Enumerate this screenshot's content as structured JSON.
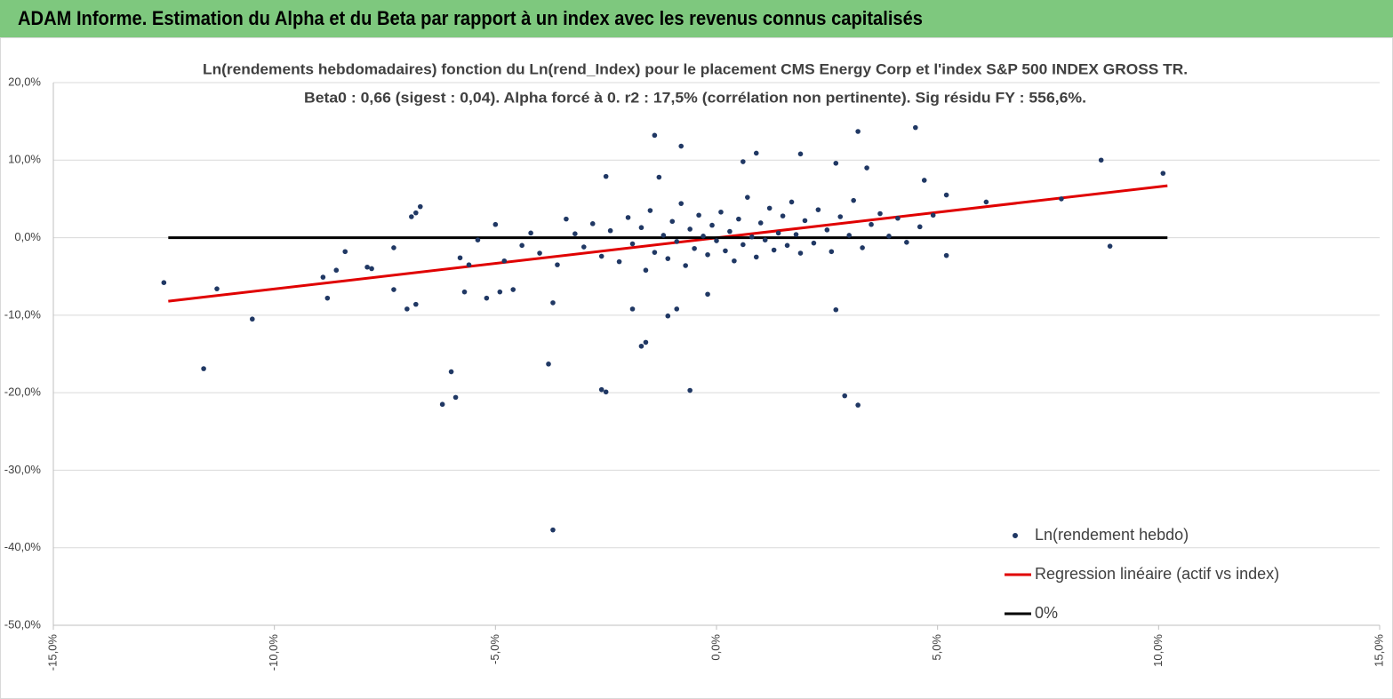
{
  "header": {
    "title": "ADAM Informe. Estimation du Alpha et du Beta par rapport à un index avec les revenus connus capitalisés"
  },
  "chart_data": {
    "type": "scatter",
    "title": "Ln(rendements hebdomadaires) fonction du Ln(rend_Index) pour le placement CMS Energy Corp et l'index S&P 500 INDEX GROSS TR.",
    "subtitle": "Beta0 : 0,66 (sigest : 0,04). Alpha forcé à 0. r2 : 17,5% (corrélation non pertinente). Sig résidu FY : 556,6%.",
    "xlim": [
      -15,
      15
    ],
    "xticks": [
      {
        "value": -15,
        "label": "-15,0%"
      },
      {
        "value": -10,
        "label": "-10,0%"
      },
      {
        "value": -5,
        "label": "-5,0%"
      },
      {
        "value": 0,
        "label": "0,0%"
      },
      {
        "value": 5,
        "label": "5,0%"
      },
      {
        "value": 10,
        "label": "10,0%"
      },
      {
        "value": 15,
        "label": "15,0%"
      }
    ],
    "ylim": [
      -50,
      20
    ],
    "yticks": [
      {
        "value": -50,
        "label": "-50,0%"
      },
      {
        "value": -40,
        "label": "-40,0%"
      },
      {
        "value": -30,
        "label": "-30,0%"
      },
      {
        "value": -20,
        "label": "-20,0%"
      },
      {
        "value": -10,
        "label": "-10,0%"
      },
      {
        "value": 0,
        "label": "0,0%"
      },
      {
        "value": 10,
        "label": "10,0%"
      },
      {
        "value": 20,
        "label": "20,0%"
      }
    ],
    "grid": true,
    "legend": "lower right",
    "series": [
      {
        "name": "Ln(rendement hebdo)",
        "type": "scatter",
        "color": "#203864",
        "x": [
          -12.5,
          -11.6,
          -11.3,
          -10.5,
          -8.9,
          -8.8,
          -8.6,
          -8.4,
          -7.9,
          -7.8,
          -7.3,
          -7.3,
          -7.0,
          -6.9,
          -6.8,
          -6.8,
          -6.7,
          -6.2,
          -6.0,
          -5.9,
          -5.8,
          -5.7,
          -5.6,
          -5.4,
          -5.2,
          -5.0,
          -4.9,
          -4.6,
          -3.8,
          -3.7,
          -3.7,
          -2.5,
          -2.6,
          -2.5,
          -1.9,
          -1.7,
          -1.6,
          -1.4,
          -1.3,
          -1.1,
          -0.9,
          -0.8,
          -0.6,
          -0.2,
          0.6,
          0.9,
          1.9,
          2.7,
          2.7,
          2.9,
          3.2,
          3.2,
          3.4,
          4.5,
          4.7,
          4.9,
          5.2,
          5.2,
          6.1,
          7.8,
          8.7,
          8.9,
          10.1,
          -3.2,
          -3.0,
          -2.8,
          -2.6,
          -2.4,
          -2.2,
          -2.0,
          -1.9,
          -1.7,
          -1.6,
          -1.5,
          -1.4,
          -1.2,
          -1.1,
          -1.0,
          -0.9,
          -0.8,
          -0.7,
          -0.6,
          -0.5,
          -0.4,
          -0.3,
          -0.2,
          -0.1,
          0.0,
          0.1,
          0.2,
          0.3,
          0.4,
          0.5,
          0.6,
          0.7,
          0.8,
          0.9,
          1.0,
          1.1,
          1.2,
          1.3,
          1.4,
          1.5,
          1.6,
          1.7,
          1.8,
          1.9,
          2.0,
          2.2,
          2.3,
          2.5,
          2.6,
          2.8,
          3.0,
          3.1,
          3.3,
          3.5,
          3.7,
          3.9,
          4.1,
          4.3,
          4.6,
          -4.0,
          -4.4,
          -3.6,
          -3.4,
          -4.8,
          -4.2
        ],
        "values": [
          -5.8,
          -16.9,
          -6.6,
          -10.5,
          -5.1,
          -7.8,
          -4.2,
          -1.8,
          -3.8,
          -4.0,
          -6.7,
          -1.3,
          -9.2,
          2.7,
          3.2,
          -8.6,
          4.0,
          -21.5,
          -17.3,
          -20.6,
          -2.6,
          -7.0,
          -3.5,
          -0.3,
          -7.8,
          1.7,
          -7.0,
          -6.7,
          -16.3,
          -8.4,
          -37.7,
          7.9,
          -19.6,
          -19.9,
          -9.2,
          -14.0,
          -13.5,
          13.2,
          7.8,
          -10.1,
          -9.2,
          11.8,
          -19.7,
          -7.3,
          9.8,
          10.9,
          10.8,
          -9.3,
          9.6,
          -20.4,
          13.7,
          -21.6,
          9.0,
          14.2,
          7.4,
          2.9,
          5.5,
          -2.3,
          4.6,
          5.0,
          10.0,
          -1.1,
          8.3,
          0.5,
          -1.2,
          1.8,
          -2.4,
          0.9,
          -3.1,
          2.6,
          -0.8,
          1.3,
          -4.2,
          3.5,
          -1.9,
          0.3,
          -2.7,
          2.1,
          -0.5,
          4.4,
          -3.6,
          1.1,
          -1.4,
          2.9,
          0.2,
          -2.2,
          1.6,
          -0.4,
          3.3,
          -1.7,
          0.8,
          -3.0,
          2.4,
          -0.9,
          5.2,
          0.1,
          -2.5,
          1.9,
          -0.3,
          3.8,
          -1.6,
          0.6,
          2.8,
          -1.0,
          4.6,
          0.4,
          -2.0,
          2.2,
          -0.7,
          3.6,
          1.0,
          -1.8,
          2.7,
          0.3,
          4.8,
          -1.3,
          1.7,
          3.1,
          0.2,
          2.5,
          -0.6,
          1.4,
          -2.0,
          -1.0,
          -3.5,
          2.4,
          -3.0,
          0.6
        ]
      },
      {
        "name": "Regression linéaire (actif vs index)",
        "type": "line",
        "color": "#e00000",
        "x": [
          -12.4,
          10.2
        ],
        "values": [
          -8.2,
          6.7
        ]
      },
      {
        "name": "0%",
        "type": "line",
        "color": "#000000",
        "x": [
          -12.4,
          10.2
        ],
        "values": [
          0,
          0
        ]
      }
    ]
  }
}
